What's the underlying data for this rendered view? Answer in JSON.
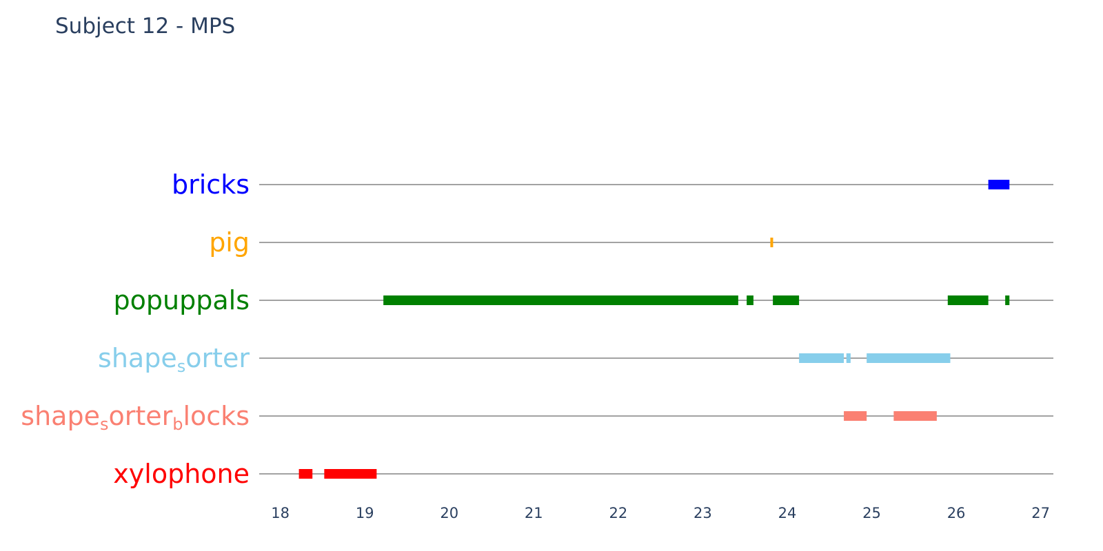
{
  "title": "Subject 12 - MPS",
  "chart_data": {
    "type": "timeline",
    "title": "Subject 12 - MPS",
    "xlabel": "",
    "ylabel": "",
    "xlim": [
      17.75,
      27.15
    ],
    "x_ticks": [
      18,
      19,
      20,
      21,
      22,
      23,
      24,
      25,
      26,
      27
    ],
    "grid": false,
    "legend": "none",
    "rows": [
      {
        "name": "bricks",
        "color": "#0000ff",
        "segments": [
          [
            26.38,
            26.63
          ]
        ]
      },
      {
        "name": "pig",
        "color": "#ffa500",
        "segments": [
          [
            23.8,
            23.83
          ]
        ]
      },
      {
        "name": "popuppals",
        "color": "#008000",
        "segments": [
          [
            19.22,
            23.42
          ],
          [
            23.52,
            23.6
          ],
          [
            23.83,
            24.14
          ],
          [
            25.9,
            26.38
          ],
          [
            26.58,
            26.63
          ]
        ]
      },
      {
        "name": "shape_sorter",
        "label_parts": [
          "shape",
          "s",
          "orter"
        ],
        "color": "#87ceeb",
        "segments": [
          [
            24.14,
            24.67
          ],
          [
            24.7,
            24.75
          ],
          [
            24.94,
            25.93
          ]
        ]
      },
      {
        "name": "shape_sorter_blocks",
        "label_parts": [
          "shape",
          "s",
          "orter",
          "b",
          "locks"
        ],
        "color": "#fa8072",
        "segments": [
          [
            24.67,
            24.94
          ],
          [
            25.26,
            25.77
          ]
        ]
      },
      {
        "name": "xylophone",
        "color": "#ff0000",
        "segments": [
          [
            18.22,
            18.38
          ],
          [
            18.52,
            19.14
          ]
        ]
      }
    ]
  }
}
